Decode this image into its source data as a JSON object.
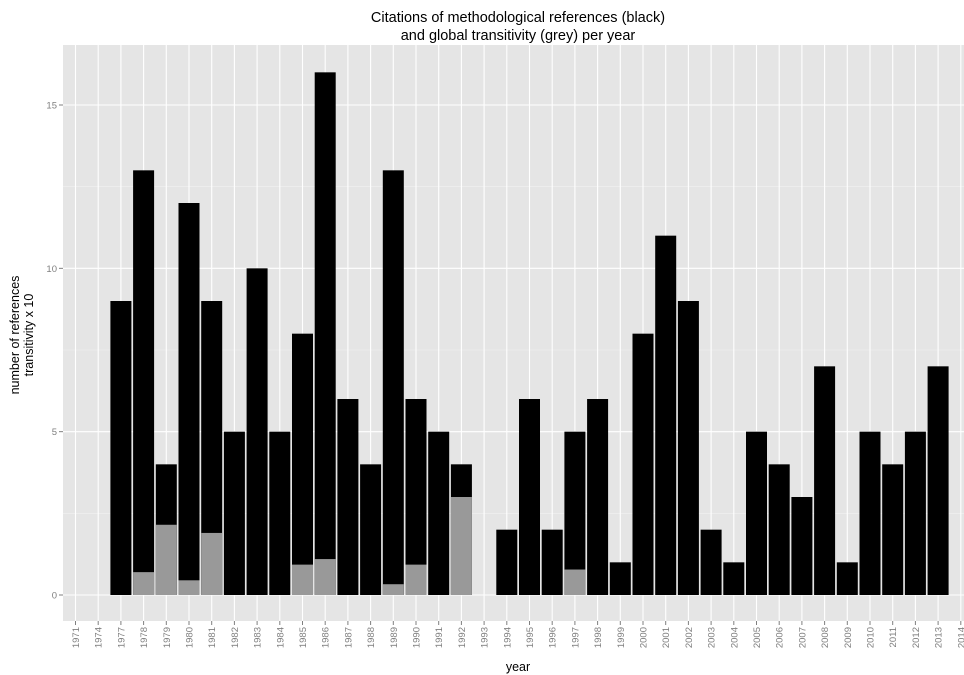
{
  "chart_data": {
    "type": "bar",
    "title": "Citations of methodological references (black)",
    "subtitle": "and global transitivity (grey) per year",
    "xlabel": "year",
    "ylabel": "number of references",
    "ylabel2": "transitivity x 10",
    "ylim": [
      -0.75,
      16.75
    ],
    "yticks": [
      0,
      5,
      10,
      15
    ],
    "grid": true,
    "background": "#e5e5e5",
    "categories": [
      "1971",
      "1974",
      "1977",
      "1978",
      "1979",
      "1980",
      "1981",
      "1982",
      "1983",
      "1984",
      "1985",
      "1986",
      "1987",
      "1988",
      "1989",
      "1990",
      "1991",
      "1992",
      "1993",
      "1994",
      "1995",
      "1996",
      "1997",
      "1998",
      "1999",
      "2000",
      "2001",
      "2002",
      "2003",
      "2004",
      "2005",
      "2006",
      "2007",
      "2008",
      "2009",
      "2010",
      "2011",
      "2012",
      "2013",
      "2014"
    ],
    "series": [
      {
        "role": "references",
        "color": "#000000",
        "values": [
          0,
          0,
          9,
          13,
          4,
          12,
          9,
          5,
          10,
          5,
          8,
          16,
          6,
          4,
          13,
          6,
          5,
          4,
          0,
          2,
          6,
          2,
          5,
          6,
          1,
          8,
          11,
          9,
          2,
          1,
          5,
          4,
          3,
          7,
          1,
          5,
          4,
          5,
          7,
          0
        ]
      },
      {
        "role": "transitivity",
        "color": "#999999",
        "values": [
          0,
          0,
          0,
          0.7,
          2.15,
          0.45,
          1.9,
          0,
          0,
          0,
          0.93,
          1.1,
          0,
          0,
          0.33,
          0.93,
          0,
          3.0,
          0,
          0,
          0,
          0,
          0.78,
          0,
          0,
          0,
          0,
          0,
          0,
          0,
          0,
          0,
          0,
          0,
          0,
          0,
          0,
          0,
          0,
          0
        ]
      }
    ],
    "highlight": {
      "category": "1992",
      "top": 4,
      "color": "#c8c8c8"
    }
  }
}
